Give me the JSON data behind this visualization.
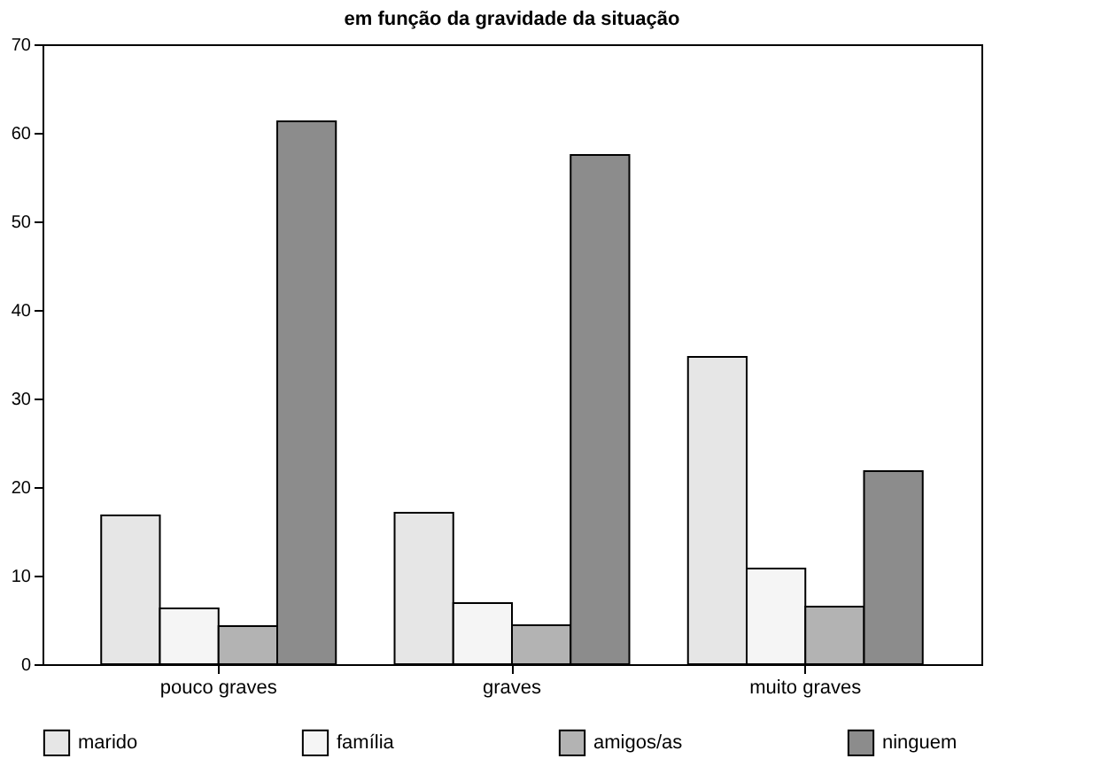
{
  "chart_data": {
    "type": "bar",
    "title": "em função da gravidade da situação",
    "categories": [
      "pouco graves",
      "graves",
      "muito graves"
    ],
    "series": [
      {
        "name": "marido",
        "color": "#e6e6e6",
        "values": [
          16.8,
          17.1,
          34.7
        ]
      },
      {
        "name": "família",
        "color": "#f5f5f5",
        "values": [
          6.3,
          6.9,
          10.8
        ]
      },
      {
        "name": "amigos/as",
        "color": "#b3b3b3",
        "values": [
          4.3,
          4.4,
          6.5
        ]
      },
      {
        "name": "ninguem",
        "color": "#8c8c8c",
        "values": [
          61.3,
          57.5,
          21.8
        ]
      }
    ],
    "ylim": [
      0,
      70
    ],
    "yticks": [
      0,
      10,
      20,
      30,
      40,
      50,
      60,
      70
    ],
    "grid": false,
    "legend": "bottom"
  }
}
